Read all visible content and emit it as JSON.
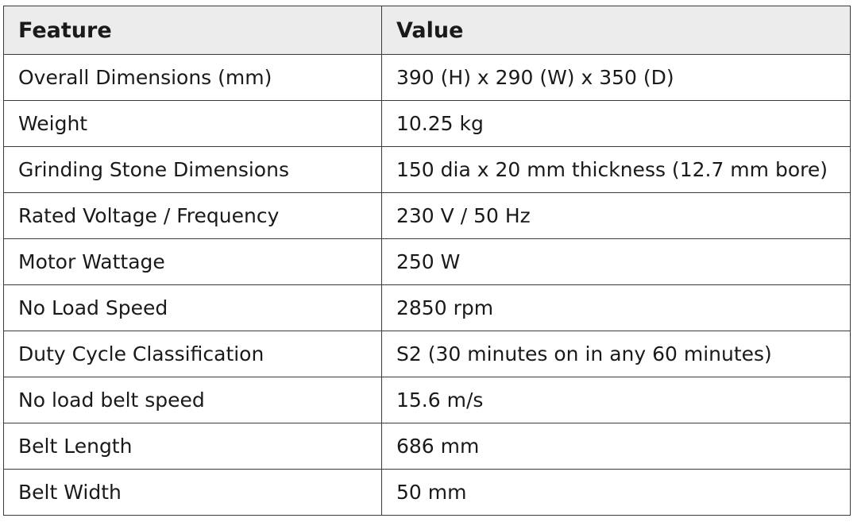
{
  "table": {
    "headers": [
      "Feature",
      "Value"
    ],
    "rows": [
      [
        "Overall Dimensions (mm)",
        "390 (H) x 290 (W) x 350 (D)"
      ],
      [
        "Weight",
        "10.25 kg"
      ],
      [
        "Grinding Stone Dimensions",
        "150 dia x 20 mm thickness (12.7 mm bore)"
      ],
      [
        "Rated Voltage / Frequency",
        "230 V / 50 Hz"
      ],
      [
        "Motor Wattage",
        "250 W"
      ],
      [
        "No Load Speed",
        "2850 rpm"
      ],
      [
        "Duty Cycle Classification",
        "S2 (30 minutes on in any 60 minutes)"
      ],
      [
        "No load belt speed",
        "15.6 m/s"
      ],
      [
        "Belt Length",
        "686 mm"
      ],
      [
        "Belt Width",
        "50 mm"
      ]
    ]
  }
}
